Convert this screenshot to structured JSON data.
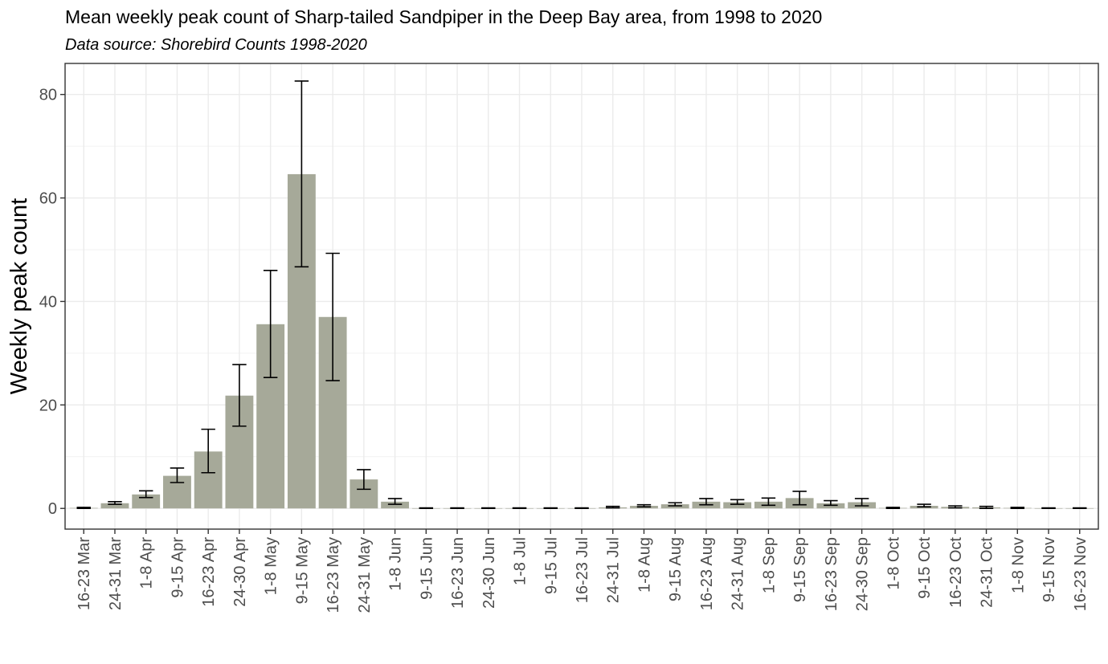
{
  "chart_data": {
    "type": "bar",
    "title": "Mean weekly peak count of Sharp-tailed Sandpiper in the Deep Bay area, from 1998 to 2020",
    "subtitle": "Data source: Shorebird Counts 1998-2020",
    "xlabel": "",
    "ylabel": "Weekly peak count",
    "ylim": [
      -4,
      86
    ],
    "yticks": [
      0,
      20,
      40,
      60,
      80
    ],
    "grid": true,
    "legend": "none",
    "bar_color": "#a6a999",
    "categories": [
      "16-23 Mar",
      "24-31 Mar",
      "1-8 Apr",
      "9-15 Apr",
      "16-23 Apr",
      "24-30 Apr",
      "1-8 May",
      "9-15 May",
      "16-23 May",
      "24-31 May",
      "1-8 Jun",
      "9-15 Jun",
      "16-23 Jun",
      "24-30 Jun",
      "1-8 Jul",
      "9-15 Jul",
      "16-23 Jul",
      "24-31 Jul",
      "1-8 Aug",
      "9-15 Aug",
      "16-23 Aug",
      "24-31 Aug",
      "1-8 Sep",
      "9-15 Sep",
      "16-23 Sep",
      "24-30 Sep",
      "1-8 Oct",
      "9-15 Oct",
      "16-23 Oct",
      "24-31 Oct",
      "1-8 Nov",
      "9-15 Nov",
      "16-23 Nov"
    ],
    "values": [
      0.1,
      1.0,
      2.7,
      6.3,
      11.0,
      21.8,
      35.6,
      64.6,
      37.0,
      5.6,
      1.3,
      0.05,
      0.05,
      0.05,
      0.05,
      0.05,
      0.05,
      0.2,
      0.5,
      0.8,
      1.3,
      1.2,
      1.3,
      2.0,
      1.0,
      1.2,
      0.1,
      0.5,
      0.3,
      0.2,
      0.1,
      0.05,
      0.05
    ],
    "error_low": [
      0.0,
      0.8,
      2.1,
      5.0,
      6.9,
      15.9,
      25.3,
      46.7,
      24.7,
      3.7,
      0.8,
      0.0,
      0.0,
      0.0,
      0.0,
      0.0,
      0.0,
      0.1,
      0.3,
      0.5,
      0.7,
      0.8,
      0.6,
      0.7,
      0.6,
      0.5,
      0.0,
      0.3,
      0.1,
      0.0,
      0.0,
      0.0,
      0.0
    ],
    "error_high": [
      0.2,
      1.3,
      3.4,
      7.8,
      15.3,
      27.8,
      46.0,
      82.6,
      49.3,
      7.5,
      1.9,
      0.1,
      0.1,
      0.1,
      0.1,
      0.1,
      0.1,
      0.4,
      0.7,
      1.1,
      1.9,
      1.7,
      2.0,
      3.3,
      1.5,
      1.9,
      0.2,
      0.8,
      0.5,
      0.4,
      0.2,
      0.1,
      0.1
    ]
  }
}
